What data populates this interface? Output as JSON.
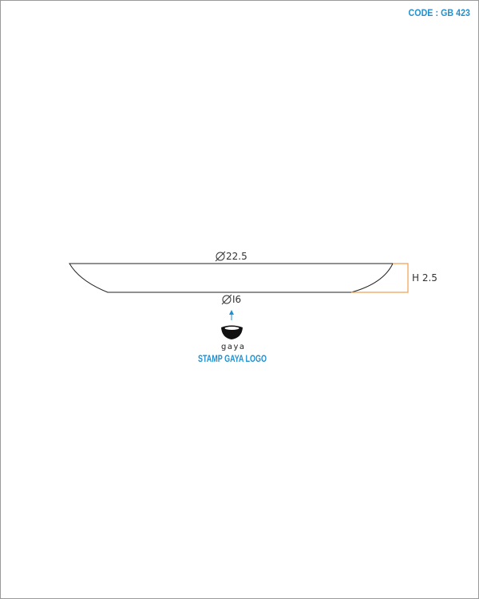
{
  "header": {
    "code": "CODE : GB 423"
  },
  "drawing": {
    "top_diameter": "22.5",
    "bottom_diameter": "I6",
    "height": "H 2.5",
    "logo_text": "gaya",
    "stamp_label": "STAMP GAYA LOGO"
  },
  "colors": {
    "accent": "#1e8fd0",
    "dimension_line": "#f0a050",
    "outline": "#222222"
  }
}
